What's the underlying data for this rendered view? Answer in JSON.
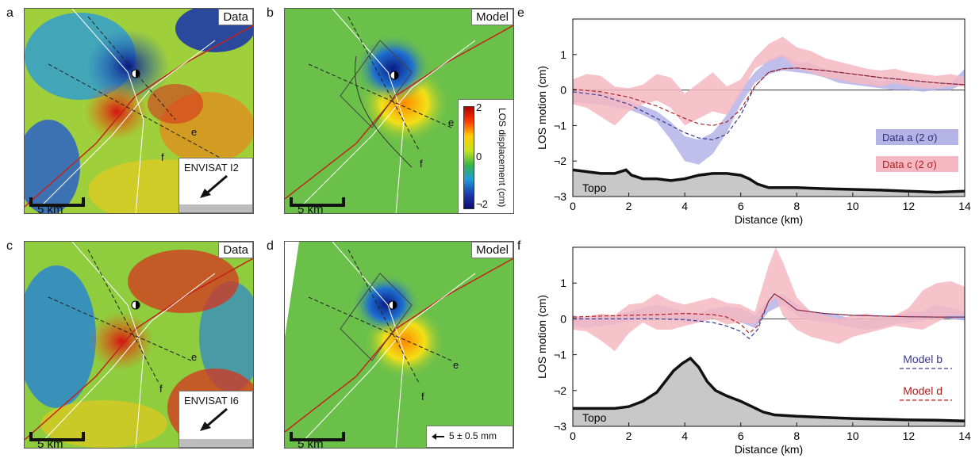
{
  "panels": {
    "a": {
      "letter": "a",
      "tag": "Data",
      "scale": "5 km",
      "inset": "ENVISAT I2",
      "profiles": [
        "e",
        "f"
      ]
    },
    "b": {
      "letter": "b",
      "tag": "Model",
      "scale": "5 km",
      "profiles": [
        "e",
        "f"
      ],
      "colorbar": {
        "title": "LOS displacement (cm)",
        "ticks": [
          "2",
          "0",
          "¬2"
        ],
        "colors": [
          "#b30000",
          "#ff3a00",
          "#ffcc00",
          "#c8e31a",
          "#39b54a",
          "#1f9bd7",
          "#1c3bb0",
          "#0b0b6e"
        ]
      }
    },
    "c": {
      "letter": "c",
      "tag": "Data",
      "scale": "5 km",
      "inset": "ENVISAT I6",
      "profiles": [
        "e",
        "f"
      ]
    },
    "d": {
      "letter": "d",
      "tag": "Model",
      "scale": "5 km",
      "profiles": [
        "e",
        "f"
      ],
      "vector_label": "5 ± 0.5 mm"
    }
  },
  "chart_data": [
    {
      "type": "line",
      "panel_letter": "e",
      "xlabel": "Distance (km)",
      "ylabel": "LOS motion (cm)",
      "xlim": [
        0,
        14
      ],
      "ylim": [
        -3,
        2
      ],
      "xticks": [
        0,
        2,
        4,
        6,
        8,
        10,
        12,
        14
      ],
      "yticks": [
        1,
        0,
        -1,
        -2,
        -3
      ],
      "ytick_labels": [
        "1",
        "0",
        "¬1",
        "¬2",
        "¬3"
      ],
      "legend": [
        {
          "label": "Data a (2 σ)",
          "color": "#b5b3e6"
        },
        {
          "label": "Data c (2 σ)",
          "color": "#f5b8c2"
        }
      ],
      "topo_label": "Topo",
      "series": [
        {
          "label": "Data a (2 σ)",
          "style": "band",
          "color": "#b5b3e6",
          "x": [
            0,
            1,
            1.5,
            2,
            2.5,
            3,
            3.5,
            4,
            4.5,
            5,
            5.5,
            6,
            6.5,
            7,
            7.5,
            8,
            8.5,
            9,
            9.5,
            10,
            10.5,
            11,
            11.5,
            12,
            12.5,
            13,
            13.5,
            14
          ],
          "upper": [
            0.05,
            -0.05,
            -0.2,
            -0.3,
            -0.45,
            -0.6,
            -0.9,
            -1.3,
            -1.4,
            -1.2,
            -0.7,
            0,
            0.5,
            0.85,
            1.0,
            0.8,
            0.75,
            0.6,
            0.45,
            0.4,
            0.35,
            0.25,
            0.3,
            0.25,
            0.2,
            0.15,
            0.2,
            0.6
          ],
          "lower": [
            -0.35,
            -0.4,
            -0.5,
            -0.55,
            -0.7,
            -0.9,
            -1.4,
            -2.0,
            -2.1,
            -1.8,
            -1.2,
            -0.4,
            0.2,
            0.45,
            0.55,
            0.5,
            0.45,
            0.35,
            0.2,
            0.15,
            0.1,
            0.05,
            0.0,
            0.0,
            -0.05,
            0.0,
            0.0,
            0.2
          ]
        },
        {
          "label": "Data c (2 σ)",
          "style": "band",
          "color": "#f5b8c2",
          "x": [
            0,
            0.5,
            1,
            1.5,
            2,
            2.5,
            3,
            3.5,
            4,
            4.5,
            5,
            5.5,
            6,
            6.5,
            7,
            7.5,
            8,
            8.5,
            9,
            9.5,
            10,
            10.5,
            11,
            11.5,
            12,
            12.5,
            13,
            13.5,
            14
          ],
          "upper": [
            0.3,
            0.45,
            0.4,
            0.1,
            0.05,
            0.15,
            0.45,
            0.35,
            -0.1,
            0.2,
            0.5,
            0.1,
            0.3,
            0.9,
            1.3,
            1.5,
            1.2,
            1.1,
            0.9,
            0.8,
            0.7,
            0.6,
            0.55,
            0.6,
            0.5,
            0.45,
            0.4,
            0.45,
            0.35
          ],
          "lower": [
            -0.4,
            -0.5,
            -0.75,
            -1.0,
            -0.6,
            -0.4,
            -0.3,
            -0.5,
            -1.0,
            -0.8,
            -0.6,
            -0.7,
            -0.1,
            0.6,
            0.8,
            0.95,
            0.6,
            0.5,
            0.35,
            0.3,
            0.2,
            0.15,
            0.1,
            0.2,
            0.1,
            0.05,
            0.05,
            0.1,
            0.1
          ]
        },
        {
          "label": "Model b",
          "style": "dashed",
          "color": "#3a3a8f",
          "x": [
            0,
            1,
            2,
            3,
            4,
            4.5,
            5,
            5.5,
            6,
            6.5,
            7,
            7.5,
            8,
            9,
            10,
            11,
            12,
            13,
            14
          ],
          "y": [
            -0.05,
            -0.15,
            -0.4,
            -0.8,
            -1.2,
            -1.35,
            -1.4,
            -1.25,
            -0.7,
            0.1,
            0.5,
            0.6,
            0.62,
            0.55,
            0.45,
            0.35,
            0.28,
            0.2,
            0.15
          ]
        },
        {
          "label": "Model d",
          "style": "dashed",
          "color": "#b02020",
          "x": [
            0,
            1,
            2,
            3,
            4,
            4.5,
            5,
            5.5,
            6,
            6.5,
            7,
            7.5,
            8,
            9,
            10,
            11,
            12,
            13,
            14
          ],
          "y": [
            0.02,
            -0.05,
            -0.2,
            -0.45,
            -0.8,
            -0.95,
            -1.0,
            -0.9,
            -0.55,
            0.1,
            0.5,
            0.6,
            0.62,
            0.55,
            0.45,
            0.35,
            0.28,
            0.2,
            0.15
          ]
        },
        {
          "label": "Topo",
          "style": "topo",
          "color": "#111111",
          "x": [
            0,
            0.5,
            1,
            1.5,
            1.9,
            2.1,
            2.5,
            3,
            3.5,
            4,
            4.5,
            5,
            5.5,
            6,
            6.3,
            6.6,
            7,
            8,
            9,
            10,
            11,
            12,
            13,
            14
          ],
          "y": [
            -2.25,
            -2.3,
            -2.35,
            -2.35,
            -2.25,
            -2.4,
            -2.5,
            -2.5,
            -2.55,
            -2.5,
            -2.4,
            -2.35,
            -2.35,
            -2.4,
            -2.5,
            -2.65,
            -2.75,
            -2.75,
            -2.78,
            -2.8,
            -2.82,
            -2.85,
            -2.88,
            -2.85
          ]
        }
      ]
    },
    {
      "type": "line",
      "panel_letter": "f",
      "xlabel": "Distance (km)",
      "ylabel": "LOS motion (cm)",
      "xlim": [
        0,
        14
      ],
      "ylim": [
        -3,
        2
      ],
      "xticks": [
        0,
        2,
        4,
        6,
        8,
        10,
        12,
        14
      ],
      "yticks": [
        1,
        0,
        -1,
        -2,
        -3
      ],
      "ytick_labels": [
        "1",
        "0",
        "¬1",
        "¬2",
        "¬3"
      ],
      "legend": [
        {
          "label": "Model b",
          "color": "#3a3a8f"
        },
        {
          "label": "Model d",
          "color": "#b02020"
        }
      ],
      "topo_label": "Topo",
      "series": [
        {
          "label": "Data b",
          "style": "band",
          "color": "#b5b3e6",
          "x": [
            0,
            0.5,
            1,
            1.5,
            2,
            2.5,
            3,
            3.5,
            4,
            4.5,
            5,
            5.5,
            6,
            6.5,
            7,
            7.5,
            8,
            8.5,
            9,
            9.5,
            10,
            10.5,
            11,
            11.5,
            12,
            12.5,
            13,
            13.5,
            14
          ],
          "upper": [
            0.1,
            0.0,
            0.05,
            0.1,
            0.2,
            0.3,
            0.4,
            0.3,
            0.2,
            0.15,
            0.3,
            0.35,
            0.3,
            0.1,
            0.55,
            0.7,
            0.4,
            0.2,
            0.15,
            0.1,
            0.0,
            -0.05,
            0.05,
            0.1,
            0.2,
            0.2,
            0.4,
            0.3,
            0.2
          ],
          "lower": [
            -0.2,
            -0.25,
            -0.2,
            -0.15,
            -0.05,
            0.0,
            0.05,
            0.0,
            -0.1,
            -0.1,
            0.05,
            0.05,
            -0.1,
            -0.25,
            0.2,
            0.4,
            0.1,
            -0.05,
            -0.1,
            -0.15,
            -0.25,
            -0.3,
            -0.25,
            -0.15,
            -0.1,
            -0.05,
            0.05,
            0.0,
            -0.05
          ]
        },
        {
          "label": "Data d",
          "style": "band",
          "color": "#f5b8c2",
          "x": [
            0,
            0.5,
            1,
            1.5,
            2,
            2.5,
            3,
            3.5,
            4,
            4.5,
            5,
            5.5,
            6,
            6.5,
            7,
            7.25,
            7.5,
            8,
            8.5,
            9,
            9.5,
            10,
            10.5,
            11,
            11.5,
            12,
            12.5,
            13,
            13.5,
            14
          ],
          "upper": [
            0.05,
            0.05,
            0.15,
            0.1,
            0.4,
            0.45,
            0.7,
            0.5,
            0.4,
            0.5,
            0.6,
            0.45,
            0.4,
            0.2,
            1.5,
            2.0,
            1.6,
            0.6,
            0.2,
            0.1,
            0.0,
            0.1,
            0.15,
            0.05,
            0.1,
            0.3,
            0.8,
            1.0,
            1.05,
            0.9
          ],
          "lower": [
            -0.3,
            -0.35,
            -0.6,
            -0.9,
            -0.4,
            -0.1,
            -0.3,
            -0.3,
            -0.2,
            -0.1,
            0.0,
            -0.15,
            -0.1,
            -0.15,
            0.4,
            0.6,
            0.1,
            -0.3,
            -0.5,
            -0.6,
            -0.7,
            -0.5,
            -0.4,
            -0.3,
            -0.2,
            -0.25,
            -0.3,
            -0.1,
            0.1,
            0.1
          ]
        },
        {
          "label": "Model b",
          "style": "dashed",
          "color": "#3a3a8f",
          "x": [
            0,
            1,
            2,
            3,
            4,
            5,
            5.5,
            6,
            6.3,
            6.6,
            7,
            7.2,
            7.5,
            8,
            9,
            10,
            11,
            12,
            13,
            14
          ],
          "y": [
            0.0,
            0.0,
            0.0,
            0.0,
            -0.02,
            -0.1,
            -0.2,
            -0.35,
            -0.55,
            -0.3,
            0.5,
            0.7,
            0.55,
            0.25,
            0.15,
            0.1,
            0.08,
            0.06,
            0.05,
            0.05
          ]
        },
        {
          "label": "Model d",
          "style": "dashed",
          "color": "#b02020",
          "x": [
            0,
            1,
            2,
            3,
            4,
            5,
            5.5,
            6,
            6.3,
            6.6,
            7,
            7.2,
            7.5,
            8,
            9,
            10,
            11,
            12,
            13,
            14
          ],
          "y": [
            0.05,
            0.08,
            0.1,
            0.12,
            0.15,
            0.12,
            0.05,
            -0.15,
            -0.4,
            -0.2,
            0.5,
            0.7,
            0.55,
            0.25,
            0.15,
            0.1,
            0.08,
            0.06,
            0.05,
            0.05
          ]
        },
        {
          "label": "Topo",
          "style": "topo",
          "color": "#111111",
          "x": [
            0,
            1,
            1.5,
            2,
            2.5,
            3,
            3.3,
            3.6,
            3.9,
            4.2,
            4.5,
            4.8,
            5.1,
            5.5,
            6,
            6.4,
            6.8,
            7.2,
            8,
            9,
            10,
            11,
            12,
            13,
            14
          ],
          "y": [
            -2.5,
            -2.5,
            -2.5,
            -2.45,
            -2.3,
            -2.05,
            -1.75,
            -1.45,
            -1.25,
            -1.1,
            -1.35,
            -1.75,
            -2.0,
            -2.15,
            -2.3,
            -2.45,
            -2.6,
            -2.68,
            -2.72,
            -2.75,
            -2.78,
            -2.8,
            -2.82,
            -2.83,
            -2.85
          ]
        }
      ]
    }
  ]
}
